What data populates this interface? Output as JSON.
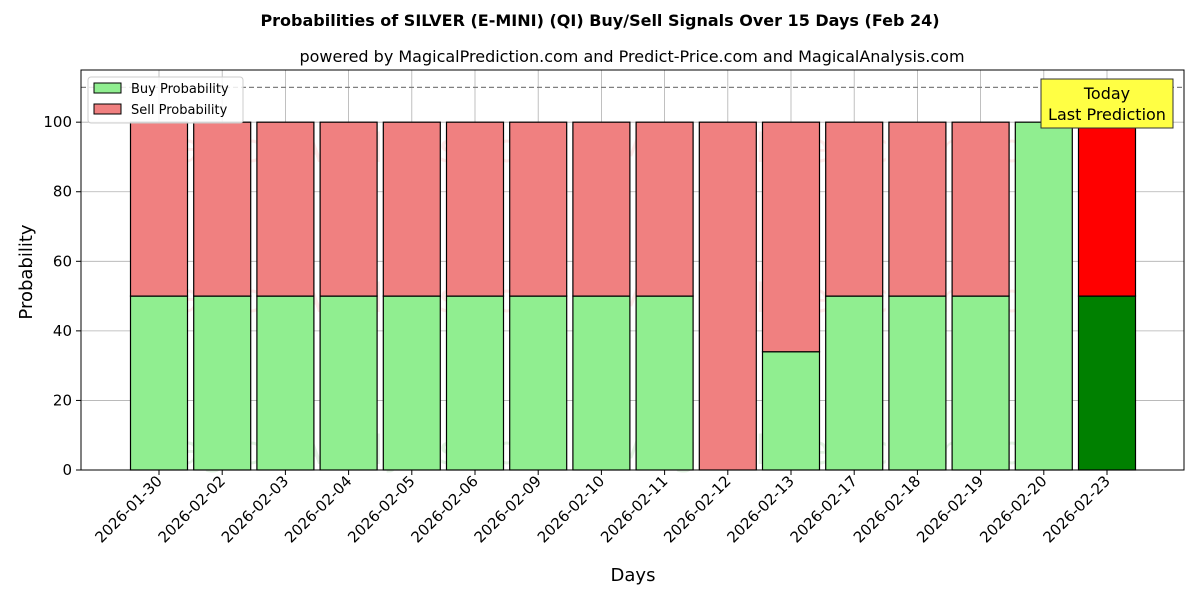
{
  "chart_data": {
    "type": "bar",
    "stacked": true,
    "title": "Probabilities of SILVER (E-MINI) (QI) Buy/Sell Signals Over 15 Days (Feb 24)",
    "subtitle": "powered by MagicalPrediction.com and Predict-Price.com and MagicalAnalysis.com",
    "xlabel": "Days",
    "ylabel": "Probability",
    "ylim": [
      0,
      115
    ],
    "yticks": [
      0,
      20,
      40,
      60,
      80,
      100
    ],
    "reference_line": 110,
    "grid": true,
    "legend_position": "top-left",
    "categories": [
      "2026-01-30",
      "2026-02-02",
      "2026-02-03",
      "2026-02-04",
      "2026-02-05",
      "2026-02-06",
      "2026-02-09",
      "2026-02-10",
      "2026-02-11",
      "2026-02-12",
      "2026-02-13",
      "2026-02-17",
      "2026-02-18",
      "2026-02-19",
      "2026-02-20",
      "2026-02-23"
    ],
    "series": [
      {
        "name": "Buy Probability",
        "color": "#90EE90",
        "highlight_color": "#008000",
        "values": [
          50,
          50,
          50,
          50,
          50,
          50,
          50,
          50,
          50,
          0,
          34,
          50,
          50,
          50,
          100,
          50
        ]
      },
      {
        "name": "Sell Probability",
        "color": "#F08080",
        "highlight_color": "#FF0000",
        "values": [
          50,
          50,
          50,
          50,
          50,
          50,
          50,
          50,
          50,
          100,
          66,
          50,
          50,
          50,
          0,
          50
        ]
      }
    ],
    "highlight_index": 15,
    "annotation": {
      "lines": [
        "Today",
        "Last Prediction"
      ],
      "bg_color": "#FFFF44"
    },
    "watermarks": [
      "MagicalAnalysis.com",
      "MagicalPrediction.com"
    ]
  }
}
